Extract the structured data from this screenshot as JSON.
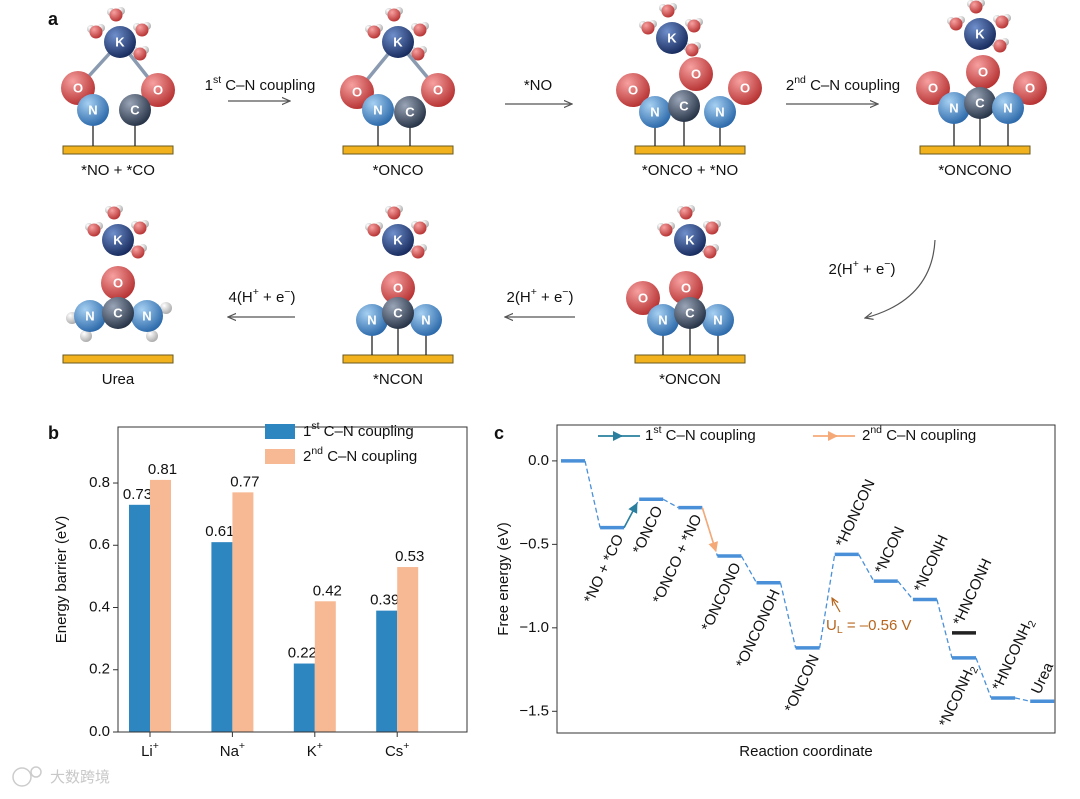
{
  "panel_labels": [
    "a",
    "b",
    "c"
  ],
  "diagram": {
    "states": [
      {
        "label": "*NO + *CO",
        "atoms": [
          "O",
          "O",
          "K",
          "N",
          "C"
        ]
      },
      {
        "label": "*ONCO",
        "atoms": [
          "O",
          "O",
          "K",
          "N",
          "C"
        ]
      },
      {
        "label": "*ONCO + *NO",
        "atoms": [
          "K",
          "O",
          "O",
          "O",
          "N",
          "C",
          "N"
        ]
      },
      {
        "label": "*ONCONO",
        "atoms": [
          "K",
          "O",
          "O",
          "O",
          "N",
          "C",
          "N"
        ]
      },
      {
        "label": "Urea",
        "atoms": [
          "K",
          "O",
          "N",
          "N",
          "C"
        ]
      },
      {
        "label": "*NCON",
        "atoms": [
          "K",
          "O",
          "N",
          "N",
          "C"
        ]
      },
      {
        "label": "*ONCON",
        "atoms": [
          "K",
          "O",
          "O",
          "N",
          "N",
          "C"
        ]
      }
    ],
    "steps": [
      [
        "1",
        {
          "sup": "st"
        },
        " C–N coupling"
      ],
      [
        "*NO"
      ],
      [
        "2",
        {
          "sup": "nd"
        },
        " C–N coupling"
      ],
      [
        "2(H",
        {
          "sup": "+"
        },
        " + e",
        {
          "sup": "−"
        },
        ")"
      ],
      [
        "2(H",
        {
          "sup": "+"
        },
        " + e",
        {
          "sup": "−"
        },
        ")"
      ],
      [
        "4(H",
        {
          "sup": "+"
        },
        " + e",
        {
          "sup": "−"
        },
        ")"
      ]
    ]
  },
  "chart_data": [
    {
      "type": "bar",
      "y_label": "Energy barrier (eV)",
      "categories": [
        [
          "Li",
          {
            "sup": "+"
          }
        ],
        [
          "Na",
          {
            "sup": "+"
          }
        ],
        [
          "K",
          {
            "sup": "+"
          }
        ],
        [
          "Cs",
          {
            "sup": "+"
          }
        ]
      ],
      "series": [
        {
          "name": [
            "1",
            {
              "sup": "st"
            },
            " C–N coupling"
          ],
          "color": "#2e86c1",
          "values": [
            0.73,
            0.61,
            0.22,
            0.39
          ]
        },
        {
          "name": [
            "2",
            {
              "sup": "nd"
            },
            " C–N coupling"
          ],
          "color": "#f6b994",
          "values": [
            0.81,
            0.77,
            0.42,
            0.53
          ]
        }
      ],
      "ylim": [
        0,
        0.98
      ],
      "yticks": [
        {
          "value": 0,
          "label": "0.0"
        },
        0.2,
        0.4,
        0.6,
        0.8
      ]
    },
    {
      "type": "energy",
      "x_label": "Reaction coordinate",
      "y_label": "Free energy (eV)",
      "series": [
        {
          "color": "#4a90d9",
          "values": [
            0.0,
            -0.4,
            -0.23,
            -0.28,
            -0.57,
            -0.73,
            -1.12,
            -0.56,
            -0.72,
            -0.83,
            -1.18,
            -1.42,
            -1.44
          ],
          "labels": [
            null,
            "*NO + *CO",
            "*ONCO",
            "*ONCO + *NO",
            "*ONCONO",
            "*ONCONOH",
            "*ONCON",
            "*HONCON",
            "*NCON",
            "*NCONH",
            [
              "*NCONH",
              {
                "sub": "2"
              }
            ],
            [
              "*HNCONH",
              {
                "sub": "2"
              }
            ],
            "Urea"
          ]
        },
        {
          "color": "#222222",
          "values": [
            null,
            null,
            null,
            null,
            null,
            null,
            null,
            null,
            null,
            null,
            -1.03,
            null,
            null
          ],
          "labels": [
            null,
            null,
            null,
            null,
            null,
            null,
            null,
            null,
            null,
            null,
            "*HNCONH",
            null,
            null
          ]
        }
      ],
      "legend": [
        {
          "name": [
            "1",
            {
              "sup": "st"
            },
            " C–N coupling"
          ],
          "color": "#2a7f9e"
        },
        {
          "name": [
            "2",
            {
              "sup": "nd"
            },
            " C–N coupling"
          ],
          "color": "#f4a977"
        }
      ],
      "annotation": {
        "text": [
          "U",
          {
            "sub": "L"
          },
          " = –0.56 V"
        ],
        "color": "#b5651d"
      },
      "ylim": [
        -1.63,
        0.215
      ],
      "yticks": [
        {
          "value": 0,
          "label": "0.0"
        },
        {
          "value": -0.5,
          "label": "−0.5"
        },
        {
          "value": -1,
          "label": "−1.0"
        },
        {
          "value": -1.5,
          "label": "−1.5"
        }
      ]
    }
  ],
  "watermark": "大数跨境"
}
